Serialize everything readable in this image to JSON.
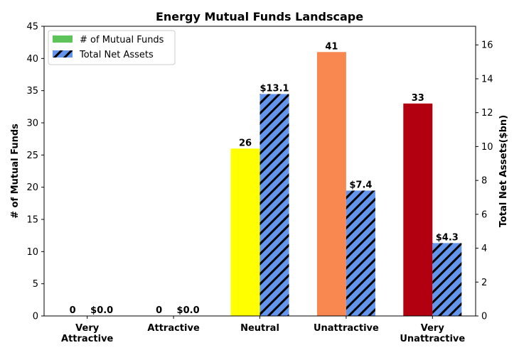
{
  "chart_data": {
    "type": "bar",
    "title": "Energy Mutual Funds Landscape",
    "categories": [
      "Very\nAttractive",
      "Attractive",
      "Neutral",
      "Unattractive",
      "Very\nUnattractive"
    ],
    "ylabel": "# of Mutual Funds",
    "y2label": "Total Net Assets($bn)",
    "ylim": [
      0,
      45
    ],
    "y2lim": [
      0,
      17.1
    ],
    "yticks": [
      0,
      5,
      10,
      15,
      20,
      25,
      30,
      35,
      40,
      45
    ],
    "y2ticks": [
      0,
      2,
      4,
      6,
      8,
      10,
      12,
      14,
      16
    ],
    "grid": false,
    "legend": "top-left",
    "series": [
      {
        "name": "# of Mutual Funds",
        "axis": "left",
        "values": [
          0,
          0,
          26,
          41,
          33
        ],
        "labels": [
          "0",
          "0",
          "26",
          "41",
          "33"
        ],
        "colors": [
          "#00b050",
          "#66bb4c",
          "#ffff00",
          "#f98850",
          "#b30010"
        ],
        "legend_color": "#5ec45a"
      },
      {
        "name": "Total Net Assets",
        "axis": "right",
        "values": [
          0.0,
          0.0,
          13.1,
          7.4,
          4.3
        ],
        "labels": [
          "$0.0",
          "$0.0",
          "$13.1",
          "$7.4",
          "$4.3"
        ],
        "color": "#6495ed",
        "hatch": "diagonal"
      }
    ]
  }
}
